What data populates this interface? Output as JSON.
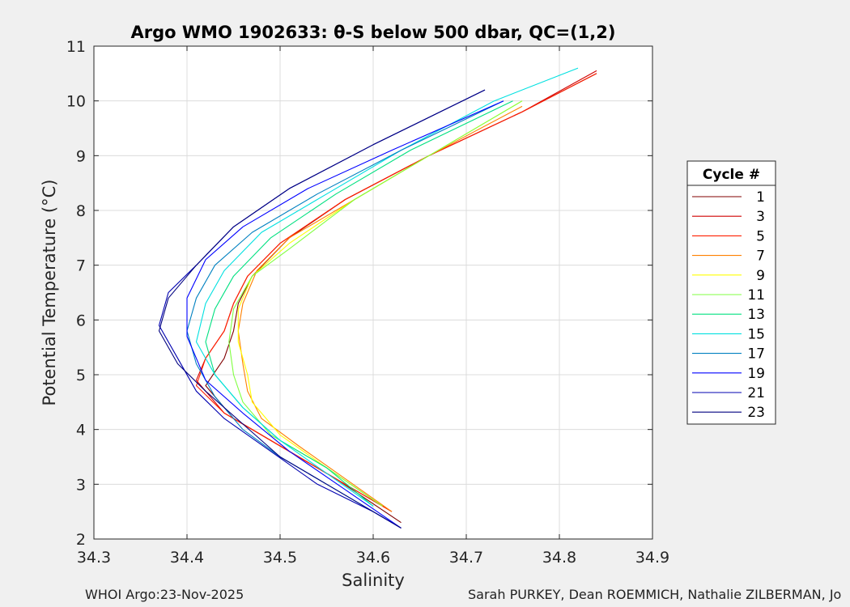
{
  "chart_data": {
    "type": "line",
    "title": "Argo WMO 1902633: θ-S below 500 dbar,  QC=(1,2)",
    "xlabel": "Salinity",
    "ylabel": "Potential Temperature (°C)",
    "xlim": [
      34.3,
      34.9
    ],
    "ylim": [
      2,
      11
    ],
    "xticks": [
      "34.3",
      "34.4",
      "34.5",
      "34.6",
      "34.7",
      "34.8",
      "34.9"
    ],
    "yticks": [
      "2",
      "3",
      "4",
      "5",
      "6",
      "7",
      "8",
      "9",
      "10",
      "11"
    ],
    "grid": true,
    "legend_title": "Cycle #",
    "legend_position": "right, outside axes",
    "series": [
      {
        "name": "1",
        "color": "#800000",
        "x": [
          34.84,
          34.76,
          34.66,
          34.57,
          34.51,
          34.47,
          34.455,
          34.45,
          34.44,
          34.42,
          34.45,
          34.5,
          34.56,
          34.63
        ],
        "y": [
          10.5,
          9.8,
          9.0,
          8.2,
          7.5,
          6.8,
          6.3,
          5.8,
          5.3,
          4.8,
          4.2,
          3.7,
          3.1,
          2.3
        ]
      },
      {
        "name": "3",
        "color": "#d00000",
        "x": [
          34.84,
          34.76,
          34.66,
          34.57,
          34.5,
          34.465,
          34.45,
          34.44,
          34.42,
          34.41,
          34.44,
          34.5,
          34.56,
          34.62
        ],
        "y": [
          10.55,
          9.8,
          9.0,
          8.2,
          7.4,
          6.8,
          6.3,
          5.8,
          5.3,
          4.9,
          4.3,
          3.7,
          3.1,
          2.5
        ]
      },
      {
        "name": "5",
        "color": "#ff2000",
        "x": [
          34.84,
          34.76,
          34.66,
          34.57,
          34.5,
          34.465,
          34.45,
          34.44,
          34.42,
          34.41,
          34.44,
          34.5,
          34.56,
          34.62
        ],
        "y": [
          10.5,
          9.8,
          9.0,
          8.2,
          7.4,
          6.8,
          6.3,
          5.8,
          5.3,
          4.8,
          4.3,
          3.7,
          3.1,
          2.5
        ]
      },
      {
        "name": "7",
        "color": "#ff8000",
        "x": [
          34.76,
          34.66,
          34.58,
          34.51,
          34.475,
          34.46,
          34.455,
          34.46,
          34.465,
          34.48,
          34.52,
          34.57,
          34.62
        ],
        "y": [
          9.9,
          9.0,
          8.2,
          7.5,
          6.9,
          6.3,
          5.8,
          5.2,
          4.7,
          4.2,
          3.7,
          3.1,
          2.5
        ]
      },
      {
        "name": "9",
        "color": "#ffff00",
        "x": [
          34.76,
          34.66,
          34.58,
          34.51,
          34.47,
          34.455,
          34.455,
          34.465,
          34.47,
          34.5,
          34.55,
          34.61
        ],
        "y": [
          10.0,
          9.0,
          8.2,
          7.4,
          6.8,
          6.2,
          5.6,
          5.0,
          4.5,
          3.9,
          3.3,
          2.6
        ]
      },
      {
        "name": "11",
        "color": "#80ff40",
        "x": [
          34.76,
          34.66,
          34.58,
          34.51,
          34.47,
          34.45,
          34.445,
          34.45,
          34.46,
          34.49,
          34.55,
          34.61
        ],
        "y": [
          10.0,
          9.0,
          8.2,
          7.3,
          6.8,
          6.2,
          5.6,
          5.0,
          4.5,
          3.9,
          3.3,
          2.6
        ]
      },
      {
        "name": "13",
        "color": "#00e080",
        "x": [
          34.75,
          34.64,
          34.56,
          34.49,
          34.45,
          34.43,
          34.42,
          34.43,
          34.46,
          34.5,
          34.55,
          34.6
        ],
        "y": [
          10.0,
          9.1,
          8.3,
          7.5,
          6.8,
          6.2,
          5.6,
          5.0,
          4.4,
          3.8,
          3.3,
          2.6
        ]
      },
      {
        "name": "15",
        "color": "#00e0e0",
        "x": [
          34.82,
          34.73,
          34.63,
          34.55,
          34.48,
          34.44,
          34.42,
          34.41,
          34.43,
          34.46,
          34.5,
          34.55,
          34.6
        ],
        "y": [
          10.6,
          10.0,
          9.1,
          8.3,
          7.6,
          6.9,
          6.3,
          5.6,
          5.0,
          4.4,
          3.8,
          3.2,
          2.6
        ]
      },
      {
        "name": "17",
        "color": "#0080c0",
        "x": [
          34.74,
          34.63,
          34.54,
          34.47,
          34.43,
          34.41,
          34.4,
          34.41,
          34.43,
          34.46,
          34.5,
          34.55,
          34.61
        ],
        "y": [
          10.0,
          9.1,
          8.3,
          7.6,
          7.0,
          6.4,
          5.8,
          5.2,
          4.6,
          4.0,
          3.5,
          3.0,
          2.4
        ]
      },
      {
        "name": "19",
        "color": "#0000ff",
        "x": [
          34.74,
          34.62,
          34.53,
          34.46,
          34.42,
          34.4,
          34.4,
          34.42,
          34.46,
          34.51,
          34.57,
          34.63
        ],
        "y": [
          10.0,
          9.1,
          8.4,
          7.7,
          7.1,
          6.4,
          5.7,
          4.9,
          4.3,
          3.6,
          2.9,
          2.2
        ]
      },
      {
        "name": "21",
        "color": "#0000b0",
        "x": [
          34.72,
          34.6,
          34.51,
          34.45,
          34.41,
          34.38,
          34.37,
          34.39,
          34.41,
          34.44,
          34.49,
          34.54,
          34.6,
          34.63
        ],
        "y": [
          10.2,
          9.2,
          8.4,
          7.7,
          7.0,
          6.5,
          5.9,
          5.3,
          4.7,
          4.2,
          3.6,
          3.0,
          2.5,
          2.2
        ]
      },
      {
        "name": "23",
        "color": "#000080",
        "x": [
          34.72,
          34.6,
          34.51,
          34.45,
          34.41,
          34.38,
          34.37,
          34.39,
          34.42,
          34.46,
          34.5,
          34.55,
          34.6,
          34.63
        ],
        "y": [
          10.2,
          9.2,
          8.4,
          7.7,
          7.0,
          6.4,
          5.8,
          5.2,
          4.7,
          4.1,
          3.5,
          3.0,
          2.5,
          2.2
        ]
      }
    ]
  },
  "footer": {
    "left": "WHOI Argo:23-Nov-2025",
    "right": "Sarah PURKEY, Dean ROEMMICH, Nathalie ZILBERMAN, Jo"
  }
}
